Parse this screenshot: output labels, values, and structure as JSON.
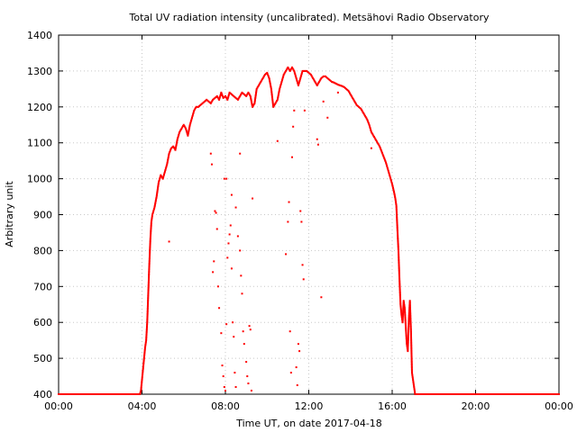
{
  "chart_data": {
    "type": "scatter",
    "title": "Total UV radiation intensity (uncalibrated). Metsähovi Radio Observatory",
    "xlabel": "Time UT, on date 2017-04-18",
    "ylabel": "Arbitrary unit",
    "xlim": [
      0,
      24
    ],
    "ylim": [
      400,
      1400
    ],
    "x_ticks": [
      0,
      4,
      8,
      12,
      16,
      20,
      24
    ],
    "x_tick_labels": [
      "00:00",
      "04:00",
      "08:00",
      "12:00",
      "16:00",
      "20:00",
      "00:00"
    ],
    "y_ticks": [
      400,
      500,
      600,
      700,
      800,
      900,
      1000,
      1100,
      1200,
      1300,
      1400
    ],
    "y_tick_labels": [
      "400",
      "500",
      "600",
      "700",
      "800",
      "900",
      "1000",
      "1100",
      "1200",
      "1300",
      "1400"
    ],
    "grid": true,
    "color": "#ff0000",
    "x_units": "hours UT",
    "series": [
      {
        "main": [
          [
            0.0,
            400
          ],
          [
            0.5,
            400
          ],
          [
            1.0,
            400
          ],
          [
            1.5,
            400
          ],
          [
            2.0,
            400
          ],
          [
            2.5,
            400
          ],
          [
            3.0,
            400
          ],
          [
            3.5,
            400
          ],
          [
            3.9,
            400
          ],
          [
            3.95,
            410
          ],
          [
            4.0,
            440
          ],
          [
            4.05,
            470
          ],
          [
            4.1,
            500
          ],
          [
            4.15,
            530
          ],
          [
            4.2,
            550
          ],
          [
            4.25,
            600
          ],
          [
            4.3,
            680
          ],
          [
            4.35,
            760
          ],
          [
            4.4,
            830
          ],
          [
            4.45,
            880
          ],
          [
            4.5,
            900
          ],
          [
            4.6,
            920
          ],
          [
            4.7,
            950
          ],
          [
            4.8,
            990
          ],
          [
            4.9,
            1010
          ],
          [
            5.0,
            1000
          ],
          [
            5.1,
            1020
          ],
          [
            5.2,
            1040
          ],
          [
            5.3,
            1070
          ],
          [
            5.4,
            1085
          ],
          [
            5.5,
            1090
          ],
          [
            5.6,
            1080
          ],
          [
            5.7,
            1110
          ],
          [
            5.8,
            1130
          ],
          [
            5.9,
            1140
          ],
          [
            6.0,
            1150
          ],
          [
            6.1,
            1140
          ],
          [
            6.2,
            1120
          ],
          [
            6.3,
            1150
          ],
          [
            6.4,
            1170
          ],
          [
            6.5,
            1190
          ],
          [
            6.6,
            1200
          ],
          [
            6.7,
            1200
          ],
          [
            6.8,
            1205
          ],
          [
            6.9,
            1210
          ],
          [
            7.0,
            1215
          ],
          [
            7.1,
            1220
          ],
          [
            7.2,
            1215
          ],
          [
            7.3,
            1210
          ],
          [
            7.4,
            1220
          ],
          [
            7.5,
            1225
          ],
          [
            7.6,
            1230
          ],
          [
            7.7,
            1220
          ],
          [
            7.8,
            1240
          ],
          [
            7.9,
            1225
          ],
          [
            8.0,
            1230
          ],
          [
            8.1,
            1220
          ],
          [
            8.2,
            1240
          ],
          [
            8.3,
            1235
          ],
          [
            8.4,
            1230
          ],
          [
            8.5,
            1225
          ],
          [
            8.6,
            1220
          ],
          [
            8.7,
            1230
          ],
          [
            8.8,
            1240
          ],
          [
            8.9,
            1235
          ],
          [
            9.0,
            1230
          ],
          [
            9.1,
            1240
          ],
          [
            9.2,
            1230
          ],
          [
            9.3,
            1200
          ],
          [
            9.4,
            1210
          ],
          [
            9.5,
            1250
          ],
          [
            9.6,
            1260
          ],
          [
            9.7,
            1270
          ],
          [
            9.8,
            1280
          ],
          [
            9.9,
            1290
          ],
          [
            10.0,
            1295
          ],
          [
            10.1,
            1280
          ],
          [
            10.2,
            1250
          ],
          [
            10.3,
            1200
          ],
          [
            10.4,
            1210
          ],
          [
            10.5,
            1220
          ],
          [
            10.6,
            1250
          ],
          [
            10.7,
            1270
          ],
          [
            10.8,
            1290
          ],
          [
            10.9,
            1300
          ],
          [
            11.0,
            1310
          ],
          [
            11.1,
            1300
          ],
          [
            11.2,
            1310
          ],
          [
            11.3,
            1300
          ],
          [
            11.4,
            1280
          ],
          [
            11.5,
            1260
          ],
          [
            11.6,
            1280
          ],
          [
            11.7,
            1300
          ],
          [
            11.8,
            1300
          ],
          [
            11.9,
            1300
          ],
          [
            12.0,
            1295
          ],
          [
            12.1,
            1290
          ],
          [
            12.2,
            1280
          ],
          [
            12.3,
            1270
          ],
          [
            12.4,
            1260
          ],
          [
            12.5,
            1270
          ],
          [
            12.6,
            1280
          ],
          [
            12.7,
            1285
          ],
          [
            12.8,
            1285
          ],
          [
            12.9,
            1280
          ],
          [
            13.0,
            1275
          ],
          [
            13.1,
            1270
          ],
          [
            13.2,
            1268
          ],
          [
            13.3,
            1265
          ],
          [
            13.4,
            1262
          ],
          [
            13.5,
            1260
          ],
          [
            13.6,
            1258
          ],
          [
            13.7,
            1255
          ],
          [
            13.8,
            1250
          ],
          [
            13.9,
            1245
          ],
          [
            14.0,
            1235
          ],
          [
            14.1,
            1225
          ],
          [
            14.2,
            1215
          ],
          [
            14.3,
            1205
          ],
          [
            14.4,
            1200
          ],
          [
            14.5,
            1195
          ],
          [
            14.6,
            1185
          ],
          [
            14.7,
            1175
          ],
          [
            14.8,
            1165
          ],
          [
            14.9,
            1150
          ],
          [
            15.0,
            1130
          ],
          [
            15.1,
            1120
          ],
          [
            15.2,
            1110
          ],
          [
            15.3,
            1100
          ],
          [
            15.4,
            1090
          ],
          [
            15.5,
            1075
          ],
          [
            15.6,
            1060
          ],
          [
            15.7,
            1045
          ],
          [
            15.8,
            1025
          ],
          [
            15.9,
            1005
          ],
          [
            16.0,
            985
          ],
          [
            16.1,
            960
          ],
          [
            16.15,
            945
          ],
          [
            16.2,
            925
          ],
          [
            16.25,
            860
          ],
          [
            16.3,
            800
          ],
          [
            16.35,
            720
          ],
          [
            16.4,
            650
          ],
          [
            16.45,
            620
          ],
          [
            16.5,
            600
          ],
          [
            16.55,
            660
          ],
          [
            16.6,
            640
          ],
          [
            16.65,
            590
          ],
          [
            16.7,
            540
          ],
          [
            16.75,
            520
          ],
          [
            16.8,
            610
          ],
          [
            16.85,
            660
          ],
          [
            16.9,
            580
          ],
          [
            16.95,
            460
          ],
          [
            17.0,
            440
          ],
          [
            17.05,
            420
          ],
          [
            17.1,
            400
          ],
          [
            17.5,
            400
          ],
          [
            18.0,
            400
          ],
          [
            18.5,
            400
          ],
          [
            19.0,
            400
          ],
          [
            19.5,
            400
          ],
          [
            20.0,
            400
          ],
          [
            20.5,
            400
          ],
          [
            21.0,
            400
          ],
          [
            21.5,
            400
          ],
          [
            22.0,
            400
          ],
          [
            22.5,
            400
          ],
          [
            23.0,
            400
          ],
          [
            23.5,
            400
          ],
          [
            24.0,
            400
          ]
        ]
      },
      {
        "outliers": [
          [
            5.3,
            825
          ],
          [
            7.3,
            1070
          ],
          [
            7.35,
            1040
          ],
          [
            7.4,
            740
          ],
          [
            7.45,
            770
          ],
          [
            7.5,
            910
          ],
          [
            7.55,
            905
          ],
          [
            7.6,
            860
          ],
          [
            7.65,
            700
          ],
          [
            7.7,
            640
          ],
          [
            7.8,
            570
          ],
          [
            7.85,
            480
          ],
          [
            7.9,
            450
          ],
          [
            7.95,
            420
          ],
          [
            8.0,
            410
          ],
          [
            8.05,
            595
          ],
          [
            8.1,
            780
          ],
          [
            8.15,
            820
          ],
          [
            8.2,
            845
          ],
          [
            8.25,
            870
          ],
          [
            8.3,
            750
          ],
          [
            8.35,
            600
          ],
          [
            8.4,
            560
          ],
          [
            8.45,
            460
          ],
          [
            8.5,
            420
          ],
          [
            8.6,
            840
          ],
          [
            8.7,
            800
          ],
          [
            8.75,
            730
          ],
          [
            8.8,
            680
          ],
          [
            8.85,
            575
          ],
          [
            8.9,
            540
          ],
          [
            9.0,
            490
          ],
          [
            9.05,
            450
          ],
          [
            9.1,
            430
          ],
          [
            9.15,
            590
          ],
          [
            9.2,
            580
          ],
          [
            9.25,
            410
          ],
          [
            9.3,
            945
          ],
          [
            7.95,
            1000
          ],
          [
            8.05,
            1000
          ],
          [
            8.3,
            955
          ],
          [
            8.5,
            920
          ],
          [
            8.7,
            1070
          ],
          [
            10.5,
            1105
          ],
          [
            10.9,
            790
          ],
          [
            11.0,
            880
          ],
          [
            11.05,
            935
          ],
          [
            11.1,
            575
          ],
          [
            11.15,
            460
          ],
          [
            11.2,
            1060
          ],
          [
            11.25,
            1145
          ],
          [
            11.3,
            1190
          ],
          [
            11.4,
            475
          ],
          [
            11.45,
            425
          ],
          [
            11.5,
            540
          ],
          [
            11.55,
            520
          ],
          [
            11.6,
            910
          ],
          [
            11.65,
            880
          ],
          [
            11.7,
            760
          ],
          [
            11.75,
            720
          ],
          [
            11.8,
            1190
          ],
          [
            12.4,
            1110
          ],
          [
            12.45,
            1095
          ],
          [
            12.6,
            670
          ],
          [
            12.7,
            1215
          ],
          [
            12.9,
            1170
          ],
          [
            13.4,
            1240
          ],
          [
            15.0,
            1085
          ]
        ]
      }
    ]
  }
}
